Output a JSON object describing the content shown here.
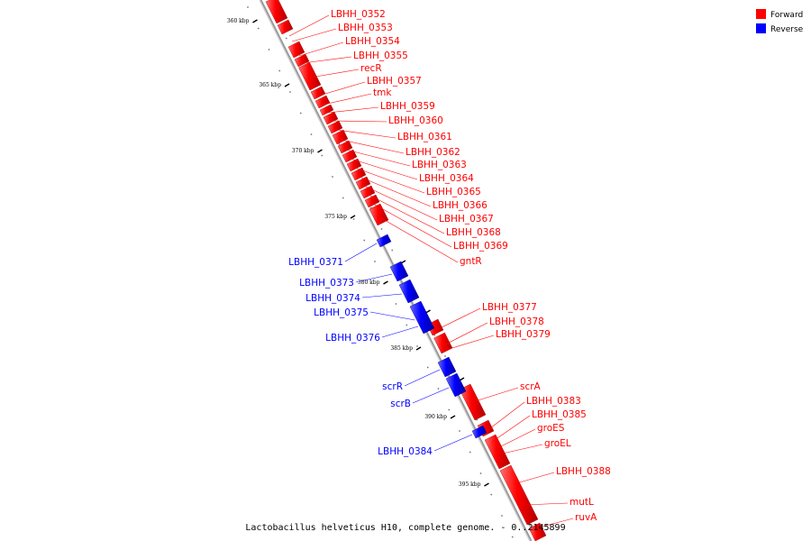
{
  "caption": "Lactobacillus helveticus H10, complete genome. - 0..2145899",
  "legend": [
    {
      "label": "Forward",
      "color": "#ff0000"
    },
    {
      "label": "Reverse",
      "color": "#0000ff"
    }
  ],
  "colors": {
    "forward": "#ff0000",
    "reverse": "#0000ff",
    "backbone": "#888888"
  },
  "scale_labels": [
    "360 kbp",
    "365 kbp",
    "370 kbp",
    "375 kbp",
    "380 kbp",
    "385 kbp",
    "390 kbp",
    "395 kbp"
  ],
  "forward_genes": [
    "LBHH_0352",
    "LBHH_0353",
    "LBHH_0354",
    "LBHH_0355",
    "recR",
    "LBHH_0357",
    "tmk",
    "LBHH_0359",
    "LBHH_0360",
    "LBHH_0361",
    "LBHH_0362",
    "LBHH_0363",
    "LBHH_0364",
    "LBHH_0365",
    "LBHH_0366",
    "LBHH_0367",
    "LBHH_0368",
    "LBHH_0369",
    "gntR",
    "LBHH_0377",
    "LBHH_0378",
    "LBHH_0379",
    "scrA",
    "LBHH_0383",
    "LBHH_0385",
    "groES",
    "groEL",
    "LBHH_0388",
    "mutL",
    "ruvA"
  ],
  "reverse_genes": [
    "LBHH_0371",
    "LBHH_0373",
    "LBHH_0374",
    "LBHH_0375",
    "LBHH_0376",
    "scrR",
    "scrB",
    "LBHH_0384"
  ]
}
